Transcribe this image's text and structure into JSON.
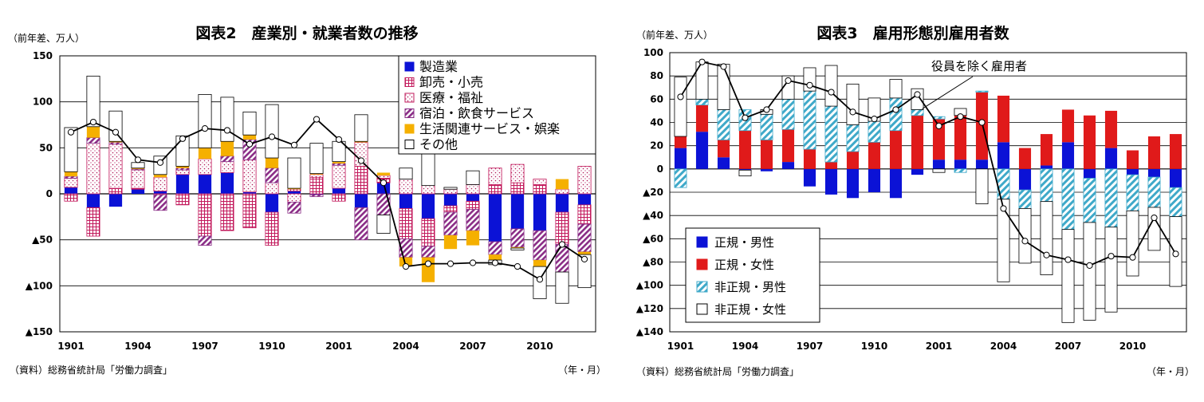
{
  "colors": {
    "blue": "#0b12d6",
    "red": "#e01a1a",
    "cyan": "#3fa9c9",
    "orange": "#f5b000",
    "purple": "#8a2d86",
    "pink": "#c2185b",
    "dot": "#b01657",
    "white": "#ffffff",
    "black": "#000000"
  },
  "chart_data": [
    {
      "type": "bar",
      "stacked": true,
      "title": "図表2　産業別・就業者数の推移",
      "unit_label": "（前年差、万人）",
      "source_label": "（資料）総務省統計局「労働力調査」",
      "xlabel": "（年・月）",
      "ylim": [
        -150,
        150
      ],
      "y_ticks": [
        150,
        100,
        50,
        0,
        -50,
        -100,
        -150
      ],
      "y_tick_labels": [
        "150",
        "100",
        "50",
        "0",
        "▲50",
        "▲100",
        "▲150"
      ],
      "x_tick_labels": [
        {
          "i": 0,
          "label": "1901"
        },
        {
          "i": 3,
          "label": "1904"
        },
        {
          "i": 6,
          "label": "1907"
        },
        {
          "i": 9,
          "label": "1910"
        },
        {
          "i": 12,
          "label": "2001"
        },
        {
          "i": 15,
          "label": "2004"
        },
        {
          "i": 18,
          "label": "2007"
        },
        {
          "i": 21,
          "label": "2010"
        }
      ],
      "n_categories": 24,
      "grid": "horizontal",
      "legend_position": "top-right",
      "series": [
        {
          "name": "製造業",
          "style": "solid-blue",
          "values": [
            7,
            -15,
            -14,
            5,
            3,
            21,
            21,
            23,
            2,
            -20,
            3,
            -1,
            6,
            -15,
            12,
            -16,
            -27,
            -13,
            -8,
            -52,
            -38,
            -40,
            -20,
            -12
          ]
        },
        {
          "name": "卸売・小売",
          "style": "grid-red",
          "values": [
            -8,
            -31,
            6,
            1,
            -1,
            -12,
            -46,
            -40,
            -37,
            -36,
            2,
            18,
            -8,
            30,
            5,
            -33,
            -30,
            -7,
            -9,
            10,
            12,
            10,
            -35,
            -21
          ]
        },
        {
          "name": "医療・福祉",
          "style": "dots",
          "values": [
            10,
            55,
            48,
            20,
            15,
            5,
            17,
            12,
            35,
            12,
            -9,
            3,
            25,
            26,
            3,
            16,
            9,
            5,
            10,
            18,
            20,
            6,
            5,
            30
          ]
        },
        {
          "name": "宿泊・飲食サービス",
          "style": "hatch-purple",
          "values": [
            2,
            6,
            2,
            1,
            -17,
            2,
            -10,
            6,
            22,
            16,
            -12,
            -2,
            2,
            -35,
            -23,
            -20,
            -12,
            -25,
            -23,
            -14,
            -20,
            -32,
            -30,
            -30
          ]
        },
        {
          "name": "生活関連サービス・娯楽",
          "style": "solid-orange",
          "values": [
            5,
            12,
            1,
            1,
            3,
            2,
            12,
            16,
            5,
            11,
            1,
            1,
            2,
            1,
            3,
            -10,
            -27,
            -15,
            -16,
            -6,
            -1,
            -7,
            11,
            -3
          ]
        },
        {
          "name": "その他",
          "style": "white",
          "values": [
            48,
            55,
            33,
            6,
            20,
            33,
            58,
            48,
            25,
            58,
            33,
            33,
            22,
            29,
            -20,
            12,
            38,
            2,
            15,
            -5,
            -2,
            -35,
            -34,
            -36
          ]
        }
      ],
      "line": {
        "name": "",
        "values": [
          67,
          78,
          67,
          37,
          34,
          60,
          71,
          69,
          54,
          62,
          53,
          81,
          59,
          36,
          12,
          -79,
          -76,
          -76,
          -75,
          -75,
          -79,
          -93,
          -55,
          -71
        ]
      }
    },
    {
      "type": "bar",
      "stacked": true,
      "title": "図表3　雇用形態別雇用者数",
      "unit_label": "（前年差、万人）",
      "source_label": "（資料）総務省統計局「労働力調査」",
      "xlabel": "（年・月）",
      "annotation": "役員を除く雇用者",
      "ylim": [
        -140,
        100
      ],
      "y_ticks": [
        100,
        80,
        60,
        40,
        20,
        0,
        -20,
        -40,
        -60,
        -80,
        -100,
        -120,
        -140
      ],
      "y_tick_labels": [
        "100",
        "80",
        "60",
        "40",
        "20",
        "0",
        "▲20",
        "▲40",
        "▲60",
        "▲80",
        "▲100",
        "▲120",
        "▲140"
      ],
      "x_tick_labels": [
        {
          "i": 0,
          "label": "1901"
        },
        {
          "i": 3,
          "label": "1904"
        },
        {
          "i": 6,
          "label": "1907"
        },
        {
          "i": 9,
          "label": "1910"
        },
        {
          "i": 12,
          "label": "2001"
        },
        {
          "i": 15,
          "label": "2004"
        },
        {
          "i": 18,
          "label": "2007"
        },
        {
          "i": 21,
          "label": "2010"
        }
      ],
      "n_categories": 24,
      "grid": "horizontal",
      "legend_position": "bottom-left",
      "series": [
        {
          "name": "正規・男性",
          "style": "solid-blue",
          "values": [
            18,
            32,
            10,
            -1,
            -2,
            6,
            -15,
            -22,
            -25,
            -20,
            -25,
            -5,
            8,
            8,
            8,
            23,
            -18,
            3,
            23,
            -8,
            18,
            -5,
            -7,
            -16
          ]
        },
        {
          "name": "正規・女性",
          "style": "solid-red",
          "values": [
            10,
            23,
            15,
            33,
            25,
            28,
            17,
            6,
            15,
            23,
            33,
            46,
            35,
            38,
            58,
            40,
            18,
            27,
            28,
            46,
            32,
            16,
            28,
            30
          ]
        },
        {
          "name": "非正規・男性",
          "style": "hatch-cyan",
          "values": [
            -16,
            5,
            26,
            18,
            22,
            26,
            50,
            48,
            23,
            18,
            28,
            5,
            2,
            -3,
            1,
            -26,
            -16,
            -28,
            -52,
            -38,
            -50,
            -31,
            -26,
            -25
          ]
        },
        {
          "name": "非正規・女性",
          "style": "white",
          "values": [
            51,
            32,
            39,
            -5,
            4,
            20,
            20,
            35,
            35,
            20,
            16,
            18,
            -3,
            6,
            -30,
            -71,
            -47,
            -63,
            -80,
            -84,
            -73,
            -56,
            -37,
            -60
          ]
        }
      ],
      "line": {
        "name": "役員を除く雇用者",
        "values": [
          62,
          92,
          88,
          44,
          51,
          76,
          72,
          66,
          49,
          43,
          51,
          64,
          37,
          45,
          40,
          -34,
          -62,
          -74,
          -78,
          -83,
          -75,
          -76,
          -42,
          -73
        ]
      }
    }
  ]
}
